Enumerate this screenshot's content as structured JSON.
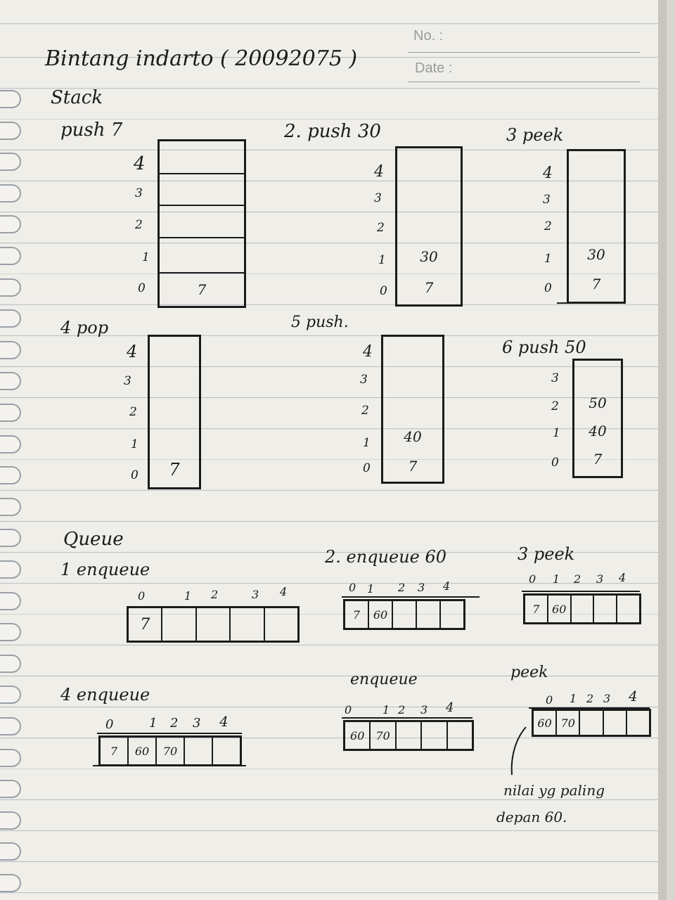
{
  "header": {
    "no_label": "No. :",
    "date_label": "Date :",
    "name_line": "Bintang indarto ( 20092075 )"
  },
  "stack": {
    "title": "Stack",
    "steps": [
      {
        "label": "push 7",
        "indices": [
          "4",
          "3",
          "2",
          "1",
          "0"
        ],
        "cells": [
          "",
          "",
          "",
          "",
          "7"
        ]
      },
      {
        "label": "2. push 30",
        "indices": [
          "4",
          "3",
          "2",
          "1",
          "0"
        ],
        "cells": [
          "",
          "",
          "",
          "30",
          "7"
        ]
      },
      {
        "label": "3 peek",
        "indices": [
          "4",
          "3",
          "2",
          "1",
          "0"
        ],
        "cells": [
          "",
          "",
          "",
          "30",
          "7"
        ]
      },
      {
        "label": "4 pop",
        "indices": [
          "4",
          "3",
          "2",
          "1",
          "0"
        ],
        "cells": [
          "",
          "",
          "",
          "",
          "7"
        ]
      },
      {
        "label": "5 push.",
        "indices": [
          "4",
          "3",
          "2",
          "1",
          "0"
        ],
        "cells": [
          "",
          "",
          "",
          "40",
          "7"
        ]
      },
      {
        "label": "6 push 50",
        "indices": [
          "3",
          "2",
          "1",
          "0"
        ],
        "cells": [
          "",
          "50",
          "40",
          "7"
        ]
      }
    ]
  },
  "queue": {
    "title": "Queue",
    "steps": [
      {
        "label": "1 enqueue",
        "indices": [
          "0",
          "1",
          "2",
          "3",
          "4"
        ],
        "cells": [
          "7",
          "",
          "",
          "",
          ""
        ]
      },
      {
        "label": "2. enqueue 60",
        "indices": [
          "0",
          "1",
          "2",
          "3",
          "4"
        ],
        "cells": [
          "7",
          "60",
          "",
          "",
          ""
        ]
      },
      {
        "label": "3 peek",
        "indices": [
          "0",
          "1",
          "2",
          "3",
          "4"
        ],
        "cells": [
          "7",
          "60",
          "",
          "",
          ""
        ]
      },
      {
        "label": "4 enqueue",
        "indices": [
          "0",
          "1",
          "2",
          "3",
          "4"
        ],
        "cells": [
          "7",
          "60",
          "70",
          "",
          ""
        ]
      },
      {
        "label": "enqueue",
        "indices": [
          "0",
          "1",
          "2",
          "3",
          "4"
        ],
        "cells": [
          "60",
          "70",
          "",
          "",
          ""
        ]
      },
      {
        "label": "peek",
        "indices": [
          "0",
          "1",
          "2",
          "3",
          "4"
        ],
        "cells": [
          "60",
          "70",
          "",
          "",
          ""
        ]
      }
    ],
    "note_line1": "nilai yg paling",
    "note_line2": "depan 60."
  }
}
